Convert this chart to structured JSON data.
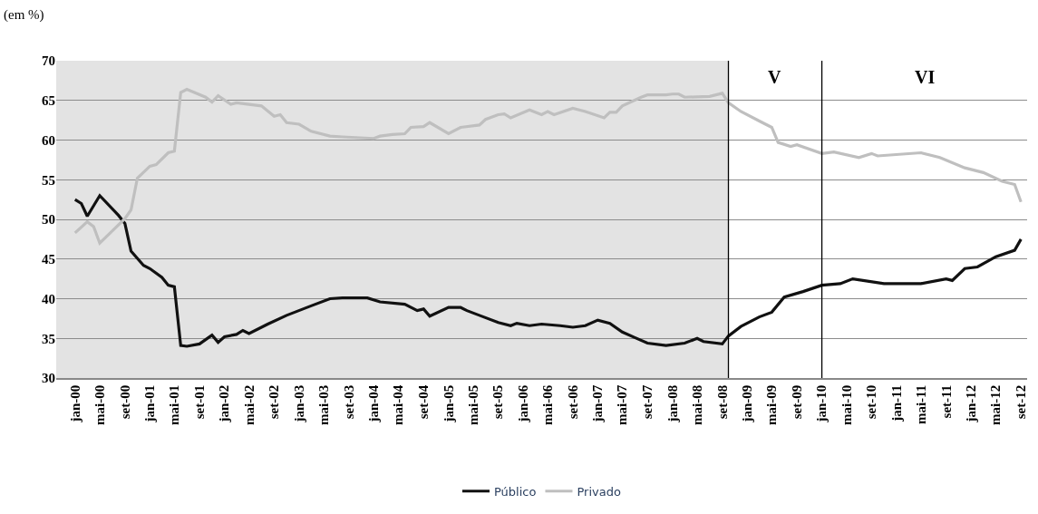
{
  "chart_data": {
    "type": "line",
    "ylabel": "(em %)",
    "ylim": [
      30,
      70
    ],
    "yticks": [
      30,
      35,
      40,
      45,
      50,
      55,
      60,
      65,
      70
    ],
    "xlim": [
      "1999-10",
      "2012-10"
    ],
    "xticks": [
      {
        "value": "2000-01",
        "label": "jan-00"
      },
      {
        "value": "2000-05",
        "label": "mai-00"
      },
      {
        "value": "2000-09",
        "label": "set-00"
      },
      {
        "value": "2001-01",
        "label": "jan-01"
      },
      {
        "value": "2001-05",
        "label": "mai-01"
      },
      {
        "value": "2001-09",
        "label": "set-01"
      },
      {
        "value": "2002-01",
        "label": "jan-02"
      },
      {
        "value": "2002-05",
        "label": "mai-02"
      },
      {
        "value": "2002-09",
        "label": "set-02"
      },
      {
        "value": "2003-01",
        "label": "jan-03"
      },
      {
        "value": "2003-05",
        "label": "mai-03"
      },
      {
        "value": "2003-09",
        "label": "set-03"
      },
      {
        "value": "2004-01",
        "label": "jan-04"
      },
      {
        "value": "2004-05",
        "label": "mai-04"
      },
      {
        "value": "2004-09",
        "label": "set-04"
      },
      {
        "value": "2005-01",
        "label": "jan-05"
      },
      {
        "value": "2005-05",
        "label": "mai-05"
      },
      {
        "value": "2005-09",
        "label": "set-05"
      },
      {
        "value": "2006-01",
        "label": "jan-06"
      },
      {
        "value": "2006-05",
        "label": "mai-06"
      },
      {
        "value": "2006-09",
        "label": "set-06"
      },
      {
        "value": "2007-01",
        "label": "jan-07"
      },
      {
        "value": "2007-05",
        "label": "mai-07"
      },
      {
        "value": "2007-09",
        "label": "set-07"
      },
      {
        "value": "2008-01",
        "label": "jan-08"
      },
      {
        "value": "2008-05",
        "label": "mai-08"
      },
      {
        "value": "2008-09",
        "label": "set-08"
      },
      {
        "value": "2009-01",
        "label": "jan-09"
      },
      {
        "value": "2009-05",
        "label": "mai-09"
      },
      {
        "value": "2009-09",
        "label": "set-09"
      },
      {
        "value": "2010-01",
        "label": "jan-10"
      },
      {
        "value": "2010-05",
        "label": "mai-10"
      },
      {
        "value": "2010-09",
        "label": "set-10"
      },
      {
        "value": "2011-01",
        "label": "jan-11"
      },
      {
        "value": "2011-05",
        "label": "mai-11"
      },
      {
        "value": "2011-09",
        "label": "set-11"
      },
      {
        "value": "2012-01",
        "label": "jan-12"
      },
      {
        "value": "2012-05",
        "label": "mai-12"
      },
      {
        "value": "2012-09",
        "label": "set-12"
      }
    ],
    "grid": "y",
    "legend": "bottom",
    "marker": "none",
    "line_style": "solid",
    "bands": [
      {
        "axis": "x",
        "from": "1999-10",
        "to": "2008-10",
        "color": "#e3e3e3"
      }
    ],
    "annotations": [
      "V",
      "VI"
    ],
    "ref_lines": [
      {
        "axis": "x",
        "value": "2008-10",
        "color": "#000000"
      },
      {
        "axis": "x",
        "value": "2010-01",
        "color": "#000000"
      }
    ],
    "series": [
      {
        "name": "Público",
        "color": "#111111",
        "x": [
          "2000-01",
          "2000-02",
          "2000-03",
          "2000-05",
          "2000-08",
          "2000-09",
          "2000-10",
          "2000-12",
          "2001-01",
          "2001-03",
          "2001-04",
          "2001-05",
          "2001-06",
          "2001-07",
          "2001-09",
          "2001-11",
          "2001-12",
          "2002-01",
          "2002-03",
          "2002-04",
          "2002-05",
          "2002-08",
          "2002-11",
          "2003-03",
          "2003-06",
          "2003-08",
          "2003-12",
          "2004-02",
          "2004-06",
          "2004-08",
          "2004-09",
          "2004-10",
          "2005-01",
          "2005-03",
          "2005-04",
          "2005-06",
          "2005-09",
          "2005-11",
          "2005-12",
          "2006-02",
          "2006-04",
          "2006-07",
          "2006-09",
          "2006-11",
          "2007-01",
          "2007-03",
          "2007-05",
          "2007-07",
          "2007-09",
          "2007-12",
          "2008-03",
          "2008-05",
          "2008-06",
          "2008-09",
          "2008-10",
          "2008-12",
          "2009-03",
          "2009-05",
          "2009-07",
          "2009-10",
          "2010-01",
          "2010-04",
          "2010-06",
          "2010-11",
          "2011-05",
          "2011-09",
          "2011-10",
          "2011-12",
          "2012-02",
          "2012-05",
          "2012-08",
          "2012-09"
        ],
        "values": [
          52.5,
          52.0,
          50.4,
          53.0,
          50.5,
          49.5,
          46.0,
          44.2,
          43.8,
          42.7,
          41.7,
          41.5,
          34.1,
          34.0,
          34.3,
          35.4,
          34.5,
          35.2,
          35.5,
          36.0,
          35.6,
          36.8,
          37.9,
          39.1,
          40.0,
          40.1,
          40.1,
          39.6,
          39.3,
          38.5,
          38.7,
          37.8,
          38.9,
          38.9,
          38.5,
          37.9,
          37.0,
          36.6,
          36.9,
          36.6,
          36.8,
          36.6,
          36.4,
          36.6,
          37.3,
          36.9,
          35.8,
          35.1,
          34.4,
          34.1,
          34.4,
          35.0,
          34.6,
          34.3,
          35.3,
          36.5,
          37.7,
          38.3,
          40.2,
          40.9,
          41.7,
          41.9,
          42.5,
          41.9,
          41.9,
          42.5,
          42.3,
          43.8,
          44.0,
          45.3,
          46.1,
          47.5
        ]
      },
      {
        "name": "Privado",
        "color": "#bfbfbf",
        "x": [
          "2000-01",
          "2000-03",
          "2000-04",
          "2000-05",
          "2000-09",
          "2000-10",
          "2000-11",
          "2001-01",
          "2001-02",
          "2001-04",
          "2001-05",
          "2001-06",
          "2001-07",
          "2001-10",
          "2001-11",
          "2001-12",
          "2002-02",
          "2002-03",
          "2002-07",
          "2002-09",
          "2002-10",
          "2002-11",
          "2003-01",
          "2003-03",
          "2003-06",
          "2003-08",
          "2004-01",
          "2004-02",
          "2004-04",
          "2004-06",
          "2004-07",
          "2004-09",
          "2004-10",
          "2005-01",
          "2005-03",
          "2005-06",
          "2005-07",
          "2005-09",
          "2005-10",
          "2005-11",
          "2006-02",
          "2006-04",
          "2006-05",
          "2006-06",
          "2006-09",
          "2006-11",
          "2007-02",
          "2007-03",
          "2007-04",
          "2007-05",
          "2007-08",
          "2007-09",
          "2007-12",
          "2008-01",
          "2008-02",
          "2008-03",
          "2008-07",
          "2008-09",
          "2008-10",
          "2008-12",
          "2009-03",
          "2009-05",
          "2009-06",
          "2009-08",
          "2009-09",
          "2010-01",
          "2010-03",
          "2010-07",
          "2010-09",
          "2010-10",
          "2011-05",
          "2011-08",
          "2011-12",
          "2012-03",
          "2012-06",
          "2012-08",
          "2012-09"
        ],
        "values": [
          48.3,
          49.7,
          49.1,
          47.0,
          50.1,
          51.2,
          55.2,
          56.7,
          56.9,
          58.4,
          58.6,
          66.0,
          66.4,
          65.4,
          64.8,
          65.6,
          64.5,
          64.7,
          64.3,
          63.0,
          63.2,
          62.2,
          62.0,
          61.1,
          60.5,
          60.4,
          60.2,
          60.5,
          60.7,
          60.8,
          61.6,
          61.7,
          62.2,
          60.8,
          61.6,
          61.9,
          62.6,
          63.2,
          63.3,
          62.8,
          63.8,
          63.2,
          63.6,
          63.2,
          64.0,
          63.6,
          62.8,
          63.5,
          63.5,
          64.3,
          65.4,
          65.7,
          65.7,
          65.8,
          65.8,
          65.4,
          65.5,
          65.9,
          64.7,
          63.6,
          62.4,
          61.6,
          59.7,
          59.2,
          59.4,
          58.3,
          58.5,
          57.8,
          58.3,
          58.0,
          58.4,
          57.8,
          56.5,
          55.9,
          54.8,
          54.4,
          52.2
        ]
      }
    ]
  }
}
